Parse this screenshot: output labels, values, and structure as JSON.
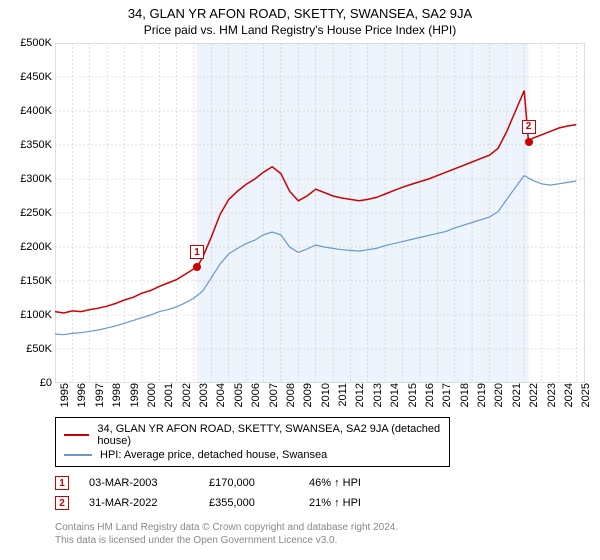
{
  "title_line1": "34, GLAN YR AFON ROAD, SKETTY, SWANSEA, SA2 9JA",
  "title_line2": "Price paid vs. HM Land Registry's House Price Index (HPI)",
  "chart": {
    "type": "line",
    "background_color": "#ffffff",
    "highlight_color": "#eef4fc",
    "highlight_xrange": [
      2003.17,
      2022.25
    ],
    "grid_color": "#bfbfbf",
    "xlim": [
      1995,
      2025.5
    ],
    "ylim": [
      0,
      500000
    ],
    "ytick_step": 50000,
    "yticks": [
      0,
      50000,
      100000,
      150000,
      200000,
      250000,
      300000,
      350000,
      400000,
      450000,
      500000
    ],
    "ytick_labels": [
      "£0",
      "£50K",
      "£100K",
      "£150K",
      "£200K",
      "£250K",
      "£300K",
      "£350K",
      "£400K",
      "£450K",
      "£500K"
    ],
    "xticks": [
      1995,
      1996,
      1997,
      1998,
      1999,
      2000,
      2001,
      2002,
      2003,
      2004,
      2005,
      2006,
      2007,
      2008,
      2009,
      2010,
      2011,
      2012,
      2013,
      2014,
      2015,
      2016,
      2017,
      2018,
      2019,
      2020,
      2021,
      2022,
      2023,
      2024,
      2025
    ],
    "title_fontsize": 13,
    "subtitle_fontsize": 12,
    "axis_fontsize": 11,
    "series": [
      {
        "name": "34, GLAN YR AFON ROAD, SKETTY, SWANSEA, SA2 9JA (detached house)",
        "color": "#cc0000",
        "line_width": 1.5,
        "points": [
          [
            1995,
            105000
          ],
          [
            1995.5,
            103000
          ],
          [
            1996,
            106000
          ],
          [
            1996.5,
            105000
          ],
          [
            1997,
            108000
          ],
          [
            1997.5,
            110000
          ],
          [
            1998,
            113000
          ],
          [
            1998.5,
            117000
          ],
          [
            1999,
            122000
          ],
          [
            1999.5,
            126000
          ],
          [
            2000,
            132000
          ],
          [
            2000.5,
            136000
          ],
          [
            2001,
            142000
          ],
          [
            2001.5,
            147000
          ],
          [
            2002,
            152000
          ],
          [
            2002.5,
            160000
          ],
          [
            2003,
            168000
          ],
          [
            2003.17,
            170000
          ],
          [
            2003.5,
            185000
          ],
          [
            2004,
            215000
          ],
          [
            2004.5,
            248000
          ],
          [
            2005,
            270000
          ],
          [
            2005.5,
            282000
          ],
          [
            2006,
            292000
          ],
          [
            2006.5,
            300000
          ],
          [
            2007,
            310000
          ],
          [
            2007.5,
            318000
          ],
          [
            2008,
            308000
          ],
          [
            2008.5,
            282000
          ],
          [
            2009,
            268000
          ],
          [
            2009.5,
            275000
          ],
          [
            2010,
            285000
          ],
          [
            2010.5,
            280000
          ],
          [
            2011,
            275000
          ],
          [
            2011.5,
            272000
          ],
          [
            2012,
            270000
          ],
          [
            2012.5,
            268000
          ],
          [
            2013,
            270000
          ],
          [
            2013.5,
            273000
          ],
          [
            2014,
            278000
          ],
          [
            2014.5,
            283000
          ],
          [
            2015,
            288000
          ],
          [
            2015.5,
            292000
          ],
          [
            2016,
            296000
          ],
          [
            2016.5,
            300000
          ],
          [
            2017,
            305000
          ],
          [
            2017.5,
            310000
          ],
          [
            2018,
            315000
          ],
          [
            2018.5,
            320000
          ],
          [
            2019,
            325000
          ],
          [
            2019.5,
            330000
          ],
          [
            2020,
            335000
          ],
          [
            2020.5,
            345000
          ],
          [
            2021,
            370000
          ],
          [
            2021.5,
            400000
          ],
          [
            2022,
            430000
          ],
          [
            2022.25,
            355000
          ],
          [
            2022.5,
            360000
          ],
          [
            2023,
            365000
          ],
          [
            2023.5,
            370000
          ],
          [
            2024,
            375000
          ],
          [
            2024.5,
            378000
          ],
          [
            2025,
            380000
          ]
        ]
      },
      {
        "name": "HPI: Average price, detached house, Swansea",
        "color": "#6699cc",
        "line_width": 1.2,
        "points": [
          [
            1995,
            72000
          ],
          [
            1995.5,
            71000
          ],
          [
            1996,
            73000
          ],
          [
            1996.5,
            74000
          ],
          [
            1997,
            76000
          ],
          [
            1997.5,
            78000
          ],
          [
            1998,
            81000
          ],
          [
            1998.5,
            84000
          ],
          [
            1999,
            88000
          ],
          [
            1999.5,
            92000
          ],
          [
            2000,
            96000
          ],
          [
            2000.5,
            100000
          ],
          [
            2001,
            105000
          ],
          [
            2001.5,
            108000
          ],
          [
            2002,
            112000
          ],
          [
            2002.5,
            118000
          ],
          [
            2003,
            125000
          ],
          [
            2003.5,
            135000
          ],
          [
            2004,
            155000
          ],
          [
            2004.5,
            175000
          ],
          [
            2005,
            190000
          ],
          [
            2005.5,
            198000
          ],
          [
            2006,
            205000
          ],
          [
            2006.5,
            210000
          ],
          [
            2007,
            218000
          ],
          [
            2007.5,
            222000
          ],
          [
            2008,
            218000
          ],
          [
            2008.5,
            200000
          ],
          [
            2009,
            192000
          ],
          [
            2009.5,
            197000
          ],
          [
            2010,
            203000
          ],
          [
            2010.5,
            200000
          ],
          [
            2011,
            198000
          ],
          [
            2011.5,
            196000
          ],
          [
            2012,
            195000
          ],
          [
            2012.5,
            194000
          ],
          [
            2013,
            196000
          ],
          [
            2013.5,
            198000
          ],
          [
            2014,
            202000
          ],
          [
            2014.5,
            205000
          ],
          [
            2015,
            208000
          ],
          [
            2015.5,
            211000
          ],
          [
            2016,
            214000
          ],
          [
            2016.5,
            217000
          ],
          [
            2017,
            220000
          ],
          [
            2017.5,
            223000
          ],
          [
            2018,
            228000
          ],
          [
            2018.5,
            232000
          ],
          [
            2019,
            236000
          ],
          [
            2019.5,
            240000
          ],
          [
            2020,
            244000
          ],
          [
            2020.5,
            252000
          ],
          [
            2021,
            270000
          ],
          [
            2021.5,
            288000
          ],
          [
            2022,
            305000
          ],
          [
            2022.5,
            298000
          ],
          [
            2023,
            293000
          ],
          [
            2023.5,
            291000
          ],
          [
            2024,
            293000
          ],
          [
            2024.5,
            295000
          ],
          [
            2025,
            297000
          ]
        ]
      }
    ],
    "sale_markers": [
      {
        "num": "1",
        "x": 2003.17,
        "y": 170000,
        "color": "#cc0000"
      },
      {
        "num": "2",
        "x": 2022.25,
        "y": 355000,
        "color": "#cc0000"
      }
    ]
  },
  "legend": {
    "items": [
      {
        "color": "#cc0000",
        "label": "34, GLAN YR AFON ROAD, SKETTY, SWANSEA, SA2 9JA (detached house)"
      },
      {
        "color": "#6699cc",
        "label": "HPI: Average price, detached house, Swansea"
      }
    ]
  },
  "sales": [
    {
      "num": "1",
      "color": "#cc0000",
      "date": "03-MAR-2003",
      "price": "£170,000",
      "hpi": "46% ↑ HPI"
    },
    {
      "num": "2",
      "color": "#cc0000",
      "date": "31-MAR-2022",
      "price": "£355,000",
      "hpi": "21% ↑ HPI"
    }
  ],
  "footer_line1": "Contains HM Land Registry data © Crown copyright and database right 2024.",
  "footer_line2": "This data is licensed under the Open Government Licence v3.0."
}
